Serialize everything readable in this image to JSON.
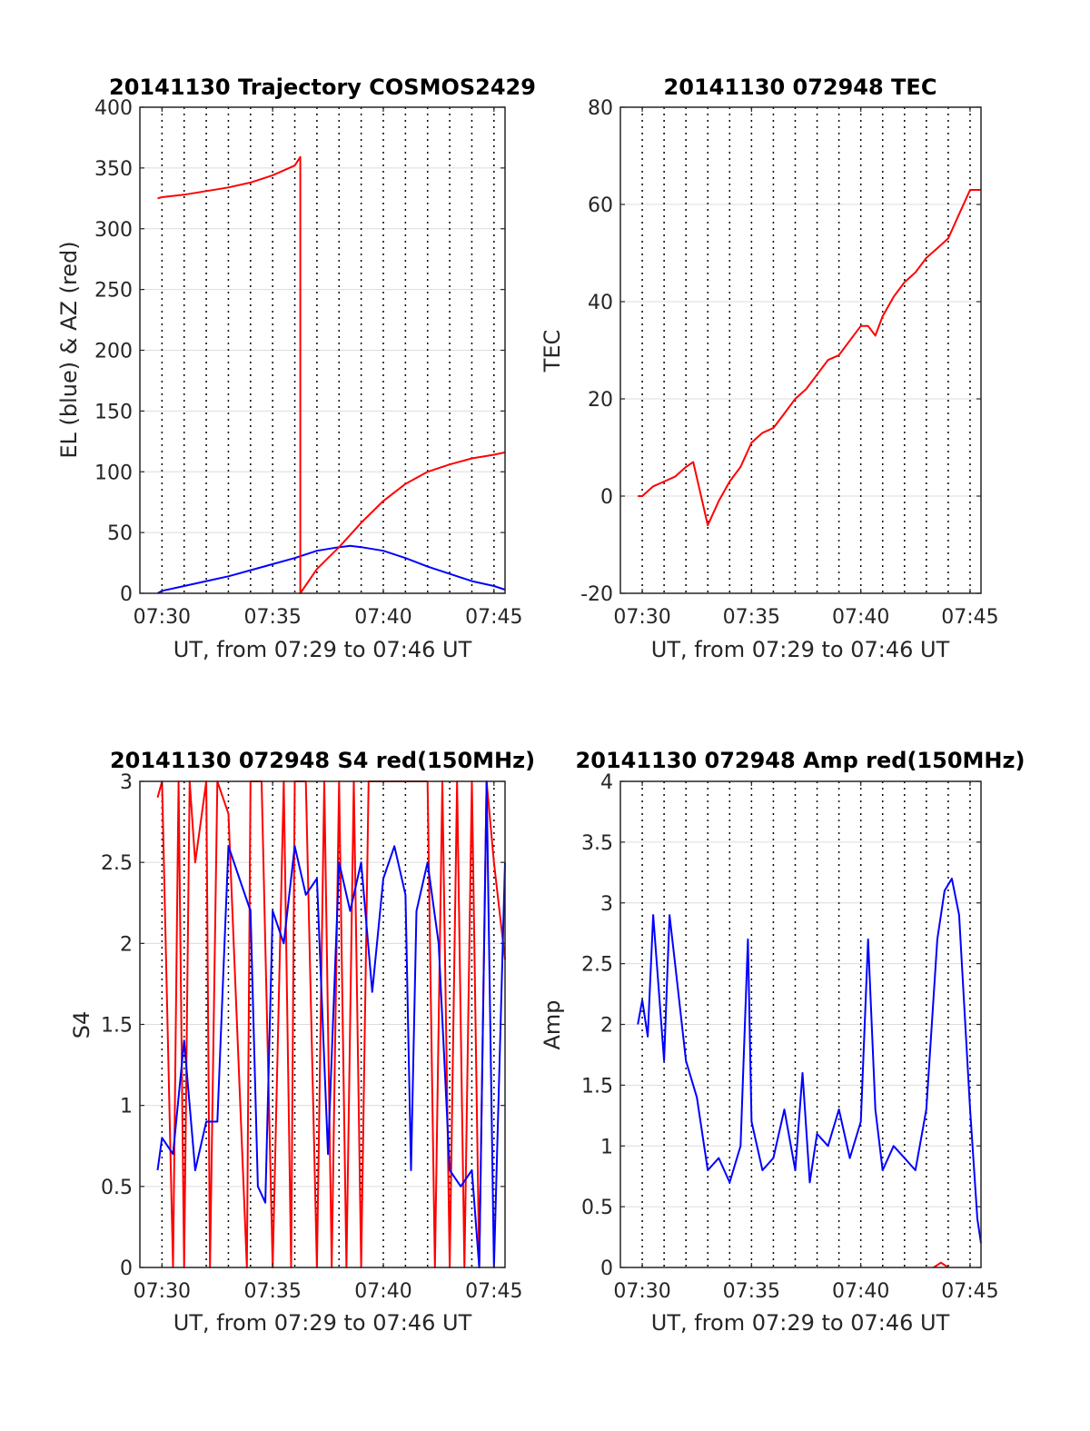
{
  "panels": [
    {
      "id": "traj",
      "title": "20141130 Trajectory COSMOS2429",
      "xlabel": "UT, from 07:29 to 07:46 UT",
      "ylabel": "EL (blue) & AZ (red)"
    },
    {
      "id": "tec",
      "title": "20141130 072948 TEC",
      "xlabel": "UT, from 07:29 to 07:46 UT",
      "ylabel": "TEC"
    },
    {
      "id": "s4",
      "title": "20141130 072948 S4 red(150MHz)",
      "xlabel": "UT, from 07:29 to 07:46 UT",
      "ylabel": "S4"
    },
    {
      "id": "amp",
      "title": "20141130 072948 Amp red(150MHz)",
      "xlabel": "UT, from 07:29 to 07:46 UT",
      "ylabel": "Amp"
    }
  ],
  "chart_data": [
    {
      "type": "line",
      "title": "20141130 Trajectory COSMOS2429",
      "xlabel": "UT, from 07:29 to 07:46 UT",
      "ylabel": "EL (blue) & AZ (red)",
      "xlim": [
        "07:29",
        "07:45:30"
      ],
      "ylim": [
        0,
        400
      ],
      "xticks": [
        "07:30",
        "07:35",
        "07:40",
        "07:45"
      ],
      "yticks": [
        "0",
        "50",
        "100",
        "150",
        "200",
        "250",
        "300",
        "350",
        "400"
      ],
      "grid": true,
      "vertical_dotted_lines": [
        "07:30",
        "07:31",
        "07:32",
        "07:33",
        "07:34",
        "07:35",
        "07:36",
        "07:37",
        "07:38",
        "07:39",
        "07:40",
        "07:41",
        "07:42",
        "07:43",
        "07:44",
        "07:45"
      ],
      "series": [
        {
          "color": "#0000ff",
          "x": [
            "07:29:48",
            "07:30",
            "07:31",
            "07:32",
            "07:33",
            "07:34",
            "07:35",
            "07:36",
            "07:37",
            "07:38",
            "07:38:30",
            "07:39",
            "07:40",
            "07:41",
            "07:42",
            "07:43",
            "07:44",
            "07:45",
            "07:45:30"
          ],
          "values": [
            0,
            2,
            6,
            10,
            14,
            19,
            24,
            29,
            35,
            38,
            39,
            38,
            35,
            29,
            22,
            16,
            10,
            6,
            3
          ]
        },
        {
          "color": "#ff0000",
          "x": [
            "07:29:48",
            "07:30",
            "07:31",
            "07:32",
            "07:33",
            "07:34",
            "07:35",
            "07:36",
            "07:36:15",
            "07:36:15",
            "07:37",
            "07:38",
            "07:39",
            "07:40",
            "07:41",
            "07:42",
            "07:43",
            "07:44",
            "07:45",
            "07:45:30"
          ],
          "values": [
            325,
            326,
            328,
            331,
            334,
            338,
            344,
            352,
            359,
            0,
            20,
            38,
            58,
            76,
            90,
            100,
            106,
            111,
            114,
            116
          ]
        }
      ]
    },
    {
      "type": "line",
      "title": "20141130 072948 TEC",
      "xlabel": "UT, from 07:29 to 07:46 UT",
      "ylabel": "TEC",
      "xlim": [
        "07:29",
        "07:45:30"
      ],
      "ylim": [
        -20,
        80
      ],
      "xticks": [
        "07:30",
        "07:35",
        "07:40",
        "07:45"
      ],
      "yticks": [
        "-20",
        "0",
        "20",
        "40",
        "60",
        "80"
      ],
      "grid": true,
      "vertical_dotted_lines": [
        "07:30",
        "07:31",
        "07:32",
        "07:33",
        "07:34",
        "07:35",
        "07:36",
        "07:37",
        "07:38",
        "07:39",
        "07:40",
        "07:41",
        "07:42",
        "07:43",
        "07:44",
        "07:45"
      ],
      "series": [
        {
          "color": "#ff0000",
          "x": [
            "07:29:48",
            "07:30",
            "07:30:30",
            "07:31",
            "07:31:30",
            "07:32",
            "07:32:20",
            "07:33",
            "07:33:30",
            "07:34",
            "07:34:30",
            "07:35",
            "07:35:30",
            "07:36",
            "07:36:30",
            "07:37",
            "07:37:30",
            "07:38",
            "07:38:30",
            "07:39",
            "07:39:30",
            "07:40",
            "07:40:20",
            "07:40:40",
            "07:41",
            "07:41:30",
            "07:42",
            "07:42:30",
            "07:43",
            "07:43:30",
            "07:44",
            "07:44:30",
            "07:45",
            "07:45:30"
          ],
          "values": [
            0,
            0,
            2,
            3,
            4,
            6,
            7,
            -6,
            -1,
            3,
            6,
            11,
            13,
            14,
            17,
            20,
            22,
            25,
            28,
            29,
            32,
            35,
            35,
            33,
            37,
            41,
            44,
            46,
            49,
            51,
            53,
            58,
            63,
            63
          ]
        }
      ]
    },
    {
      "type": "line",
      "title": "20141130 072948 S4 red(150MHz)",
      "xlabel": "UT, from 07:29 to 07:46 UT",
      "ylabel": "S4",
      "xlim": [
        "07:29",
        "07:45:30"
      ],
      "ylim": [
        0,
        3
      ],
      "xticks": [
        "07:30",
        "07:35",
        "07:40",
        "07:45"
      ],
      "yticks": [
        "0",
        "0.5",
        "1",
        "1.5",
        "2",
        "2.5",
        "3"
      ],
      "grid": true,
      "vertical_dotted_lines": [
        "07:30",
        "07:31",
        "07:32",
        "07:33",
        "07:34",
        "07:35",
        "07:36",
        "07:37",
        "07:38",
        "07:39",
        "07:40",
        "07:41",
        "07:42",
        "07:43",
        "07:44",
        "07:45"
      ],
      "series": [
        {
          "color": "#ff0000",
          "x": [
            "07:29:48",
            "07:30",
            "07:30:30",
            "07:30:45",
            "07:31",
            "07:31:15",
            "07:31:30",
            "07:32",
            "07:32:10",
            "07:32:30",
            "07:33",
            "07:33:50",
            "07:34",
            "07:34:30",
            "07:35",
            "07:35:30",
            "07:35:50",
            "07:36",
            "07:36:30",
            "07:37",
            "07:37:20",
            "07:37:40",
            "07:38",
            "07:38:20",
            "07:38:40",
            "07:39",
            "07:39:20",
            "07:39:40",
            "07:40",
            "07:40:30",
            "07:41",
            "07:41:30",
            "07:42",
            "07:42:20",
            "07:42:40",
            "07:43",
            "07:43:20",
            "07:43:40",
            "07:44",
            "07:44:20",
            "07:44:40",
            "07:45",
            "07:45:30"
          ],
          "values": [
            2.9,
            3,
            0,
            3,
            0,
            3,
            2.5,
            3,
            0,
            3,
            2.8,
            0,
            3,
            3,
            0,
            3,
            0,
            3,
            3,
            0,
            3,
            0,
            3,
            0,
            3,
            0,
            3,
            3,
            3,
            3,
            3,
            3,
            3,
            0,
            3,
            0,
            3,
            0,
            3,
            0,
            3,
            2.5,
            1.9
          ]
        },
        {
          "color": "#0000ff",
          "x": [
            "07:29:48",
            "07:30",
            "07:30:30",
            "07:31",
            "07:31:30",
            "07:32",
            "07:32:30",
            "07:33",
            "07:33:30",
            "07:34",
            "07:34:20",
            "07:34:40",
            "07:35",
            "07:35:30",
            "07:36",
            "07:36:30",
            "07:37",
            "07:37:30",
            "07:38",
            "07:38:30",
            "07:39",
            "07:39:30",
            "07:40",
            "07:40:30",
            "07:41",
            "07:41:15",
            "07:41:30",
            "07:42",
            "07:42:30",
            "07:43",
            "07:43:30",
            "07:44",
            "07:44:20",
            "07:44:40",
            "07:45",
            "07:45:30"
          ],
          "values": [
            0.6,
            0.8,
            0.7,
            1.4,
            0.6,
            0.9,
            0.9,
            2.6,
            2.4,
            2.2,
            0.5,
            0.4,
            2.2,
            2.0,
            2.6,
            2.3,
            2.4,
            0.7,
            2.5,
            2.2,
            2.5,
            1.7,
            2.4,
            2.6,
            2.3,
            0.6,
            2.2,
            2.5,
            2.0,
            0.6,
            0.5,
            0.6,
            0,
            3,
            0,
            2.5
          ]
        }
      ]
    },
    {
      "type": "line",
      "title": "20141130 072948 Amp red(150MHz)",
      "xlabel": "UT, from 07:29 to 07:46 UT",
      "ylabel": "Amp",
      "xlim": [
        "07:29",
        "07:45:30"
      ],
      "ylim": [
        0,
        4
      ],
      "xticks": [
        "07:30",
        "07:35",
        "07:40",
        "07:45"
      ],
      "yticks": [
        "0",
        "0.5",
        "1",
        "1.5",
        "2",
        "2.5",
        "3",
        "3.5",
        "4"
      ],
      "grid": true,
      "vertical_dotted_lines": [
        "07:30",
        "07:31",
        "07:32",
        "07:33",
        "07:34",
        "07:35",
        "07:36",
        "07:37",
        "07:38",
        "07:39",
        "07:40",
        "07:41",
        "07:42",
        "07:43",
        "07:44",
        "07:45"
      ],
      "series": [
        {
          "color": "#0000ff",
          "x": [
            "07:29:48",
            "07:30",
            "07:30:15",
            "07:30:30",
            "07:31",
            "07:31:15",
            "07:31:30",
            "07:32",
            "07:32:30",
            "07:33",
            "07:33:30",
            "07:34",
            "07:34:30",
            "07:34:50",
            "07:35",
            "07:35:30",
            "07:36",
            "07:36:30",
            "07:37",
            "07:37:20",
            "07:37:40",
            "07:38",
            "07:38:30",
            "07:39",
            "07:39:30",
            "07:40",
            "07:40:20",
            "07:40:40",
            "07:41",
            "07:41:30",
            "07:42",
            "07:42:30",
            "07:43",
            "07:43:30",
            "07:43:50",
            "07:44:10",
            "07:44:30",
            "07:45",
            "07:45:20",
            "07:45:30"
          ],
          "values": [
            2.0,
            2.2,
            1.9,
            2.9,
            1.7,
            2.9,
            2.5,
            1.7,
            1.4,
            0.8,
            0.9,
            0.7,
            1.0,
            2.7,
            1.2,
            0.8,
            0.9,
            1.3,
            0.8,
            1.6,
            0.7,
            1.1,
            1.0,
            1.3,
            0.9,
            1.2,
            2.7,
            1.3,
            0.8,
            1.0,
            0.9,
            0.8,
            1.3,
            2.7,
            3.1,
            3.2,
            2.9,
            1.3,
            0.4,
            0.2
          ]
        },
        {
          "color": "#ff0000",
          "x": [
            "07:43:20",
            "07:43:40",
            "07:44"
          ],
          "values": [
            0,
            0.04,
            0
          ]
        }
      ]
    }
  ]
}
